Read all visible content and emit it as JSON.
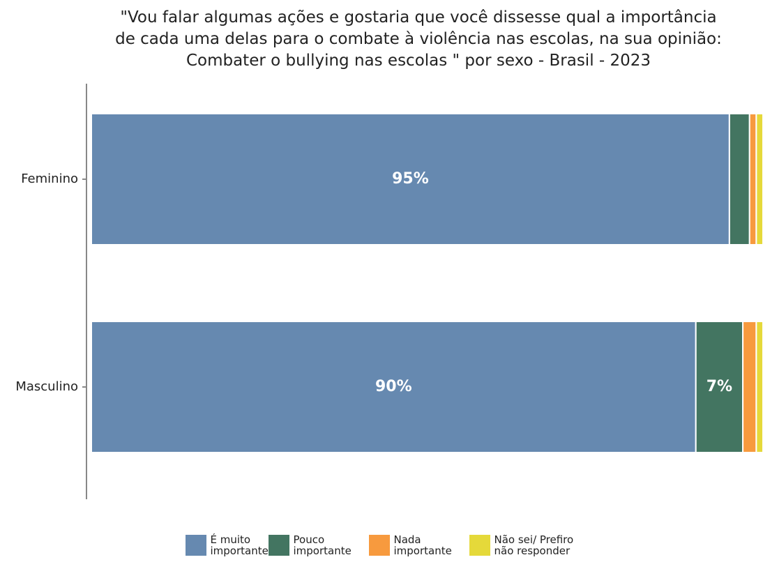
{
  "chart_data": {
    "type": "stacked_barh",
    "title": "\"Vou falar algumas ações e gostaria que você dissesse qual a importância de cada uma delas para o combate à violência nas escolas, na sua opinião: Combater o bullying nas escolas \" por sexo - Brasil - 2023",
    "categories": [
      "Feminino",
      "Masculino"
    ],
    "series": [
      {
        "name": "É muito importante",
        "color": "#6689b0",
        "values": [
          95,
          90
        ],
        "value_labels": [
          "95%",
          "90%"
        ]
      },
      {
        "name": "Pouco importante",
        "color": "#437561",
        "values": [
          3,
          7
        ],
        "value_labels": [
          null,
          "7%"
        ]
      },
      {
        "name": "Nada importante",
        "color": "#f79a3e",
        "values": [
          1,
          2
        ],
        "value_labels": [
          null,
          null
        ]
      },
      {
        "name": "Não sei/ Prefiro não responder",
        "color": "#e5d93a",
        "values": [
          1,
          1
        ],
        "value_labels": [
          null,
          null
        ]
      }
    ],
    "legend": "bottom"
  }
}
